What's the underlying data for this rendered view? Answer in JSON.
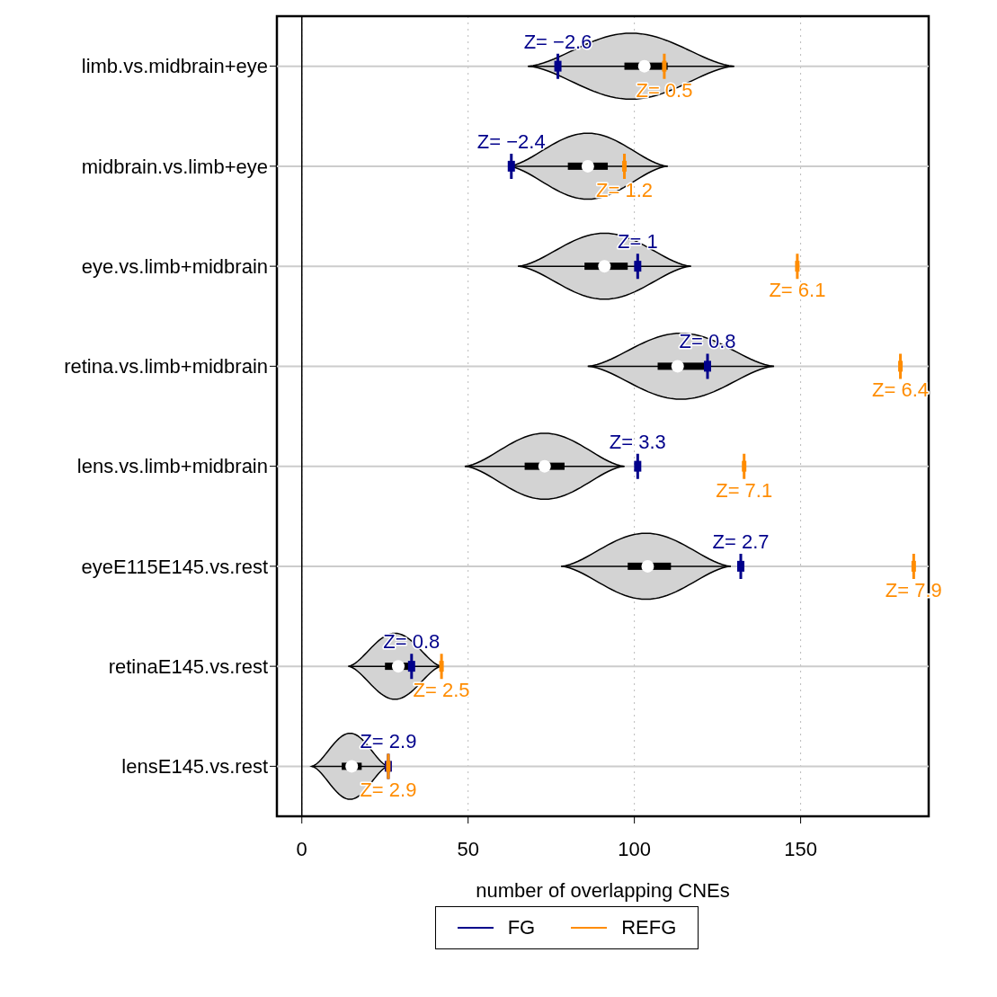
{
  "chart_data": {
    "type": "box",
    "orientation": "horizontal",
    "xlabel": "number of overlapping CNEs",
    "categories": [
      "limb.vs.midbrain+eye",
      "midbrain.vs.limb+eye",
      "eye.vs.limb+midbrain",
      "retina.vs.limb+midbrain",
      "lens.vs.limb+midbrain",
      "eyeE115E145.vs.rest",
      "retinaE145.vs.rest",
      "lensE145.vs.rest"
    ],
    "boxes": [
      {
        "low": 68,
        "q1": 97,
        "median": 103,
        "q3": 110,
        "high": 130
      },
      {
        "low": 62,
        "q1": 80,
        "median": 86,
        "q3": 92,
        "high": 110
      },
      {
        "low": 65,
        "q1": 85,
        "median": 91,
        "q3": 98,
        "high": 117
      },
      {
        "low": 86,
        "q1": 107,
        "median": 113,
        "q3": 121,
        "high": 142
      },
      {
        "low": 49,
        "q1": 67,
        "median": 73,
        "q3": 79,
        "high": 97
      },
      {
        "low": 78,
        "q1": 98,
        "median": 104,
        "q3": 111,
        "high": 129
      },
      {
        "low": 14,
        "q1": 25,
        "median": 29,
        "q3": 32,
        "high": 42
      },
      {
        "low": 3,
        "q1": 12,
        "median": 15,
        "q3": 18,
        "high": 26
      }
    ],
    "series": [
      {
        "name": "FG",
        "type": "scatter",
        "color": "#00008b",
        "values": [
          77,
          63,
          101,
          122,
          101,
          132,
          33,
          26
        ]
      },
      {
        "name": "REFG",
        "type": "scatter",
        "color": "#ff8c00",
        "values": [
          109,
          97,
          149,
          180,
          133,
          184,
          42,
          26
        ]
      }
    ],
    "annotations": [
      {
        "text": "Z= −2.6",
        "x": 77,
        "y": "limb.vs.midbrain+eye"
      },
      {
        "text": "Z= 0.5",
        "x": 109,
        "y": "limb.vs.midbrain+eye"
      },
      {
        "text": "Z= −2.4",
        "x": 63,
        "y": "midbrain.vs.limb+eye"
      },
      {
        "text": "Z= 1.2",
        "x": 97,
        "y": "midbrain.vs.limb+eye"
      },
      {
        "text": "Z= 1",
        "x": 101,
        "y": "eye.vs.limb+midbrain"
      },
      {
        "text": "Z= 6.1",
        "x": 149,
        "y": "eye.vs.limb+midbrain"
      },
      {
        "text": "Z= 0.8",
        "x": 122,
        "y": "retina.vs.limb+midbrain"
      },
      {
        "text": "Z= 6.4",
        "x": 180,
        "y": "retina.vs.limb+midbrain"
      },
      {
        "text": "Z= 3.3",
        "x": 101,
        "y": "lens.vs.limb+midbrain"
      },
      {
        "text": "Z= 7.1",
        "x": 133,
        "y": "lens.vs.limb+midbrain"
      },
      {
        "text": "Z= 2.7",
        "x": 132,
        "y": "eyeE115E145.vs.rest"
      },
      {
        "text": "Z= 7.9",
        "x": 184,
        "y": "eyeE115E145.vs.rest"
      },
      {
        "text": "Z= 0.8",
        "x": 33,
        "y": "retinaE145.vs.rest"
      },
      {
        "text": "Z= 2.5",
        "x": 42,
        "y": "retinaE145.vs.rest"
      },
      {
        "text": "Z= 2.9",
        "x": 26,
        "y": "lensE145.vs.rest"
      },
      {
        "text": "Z= 2.9",
        "x": 26,
        "y": "lensE145.vs.rest"
      }
    ],
    "ref_lines": [
      {
        "axis": "x",
        "value": 0,
        "color": "#000000",
        "line_style": "solid"
      }
    ],
    "xlim": [
      -7.5,
      188.5
    ],
    "xticks": [
      0,
      50,
      100,
      150
    ],
    "grid": true,
    "legend": "bottom"
  }
}
